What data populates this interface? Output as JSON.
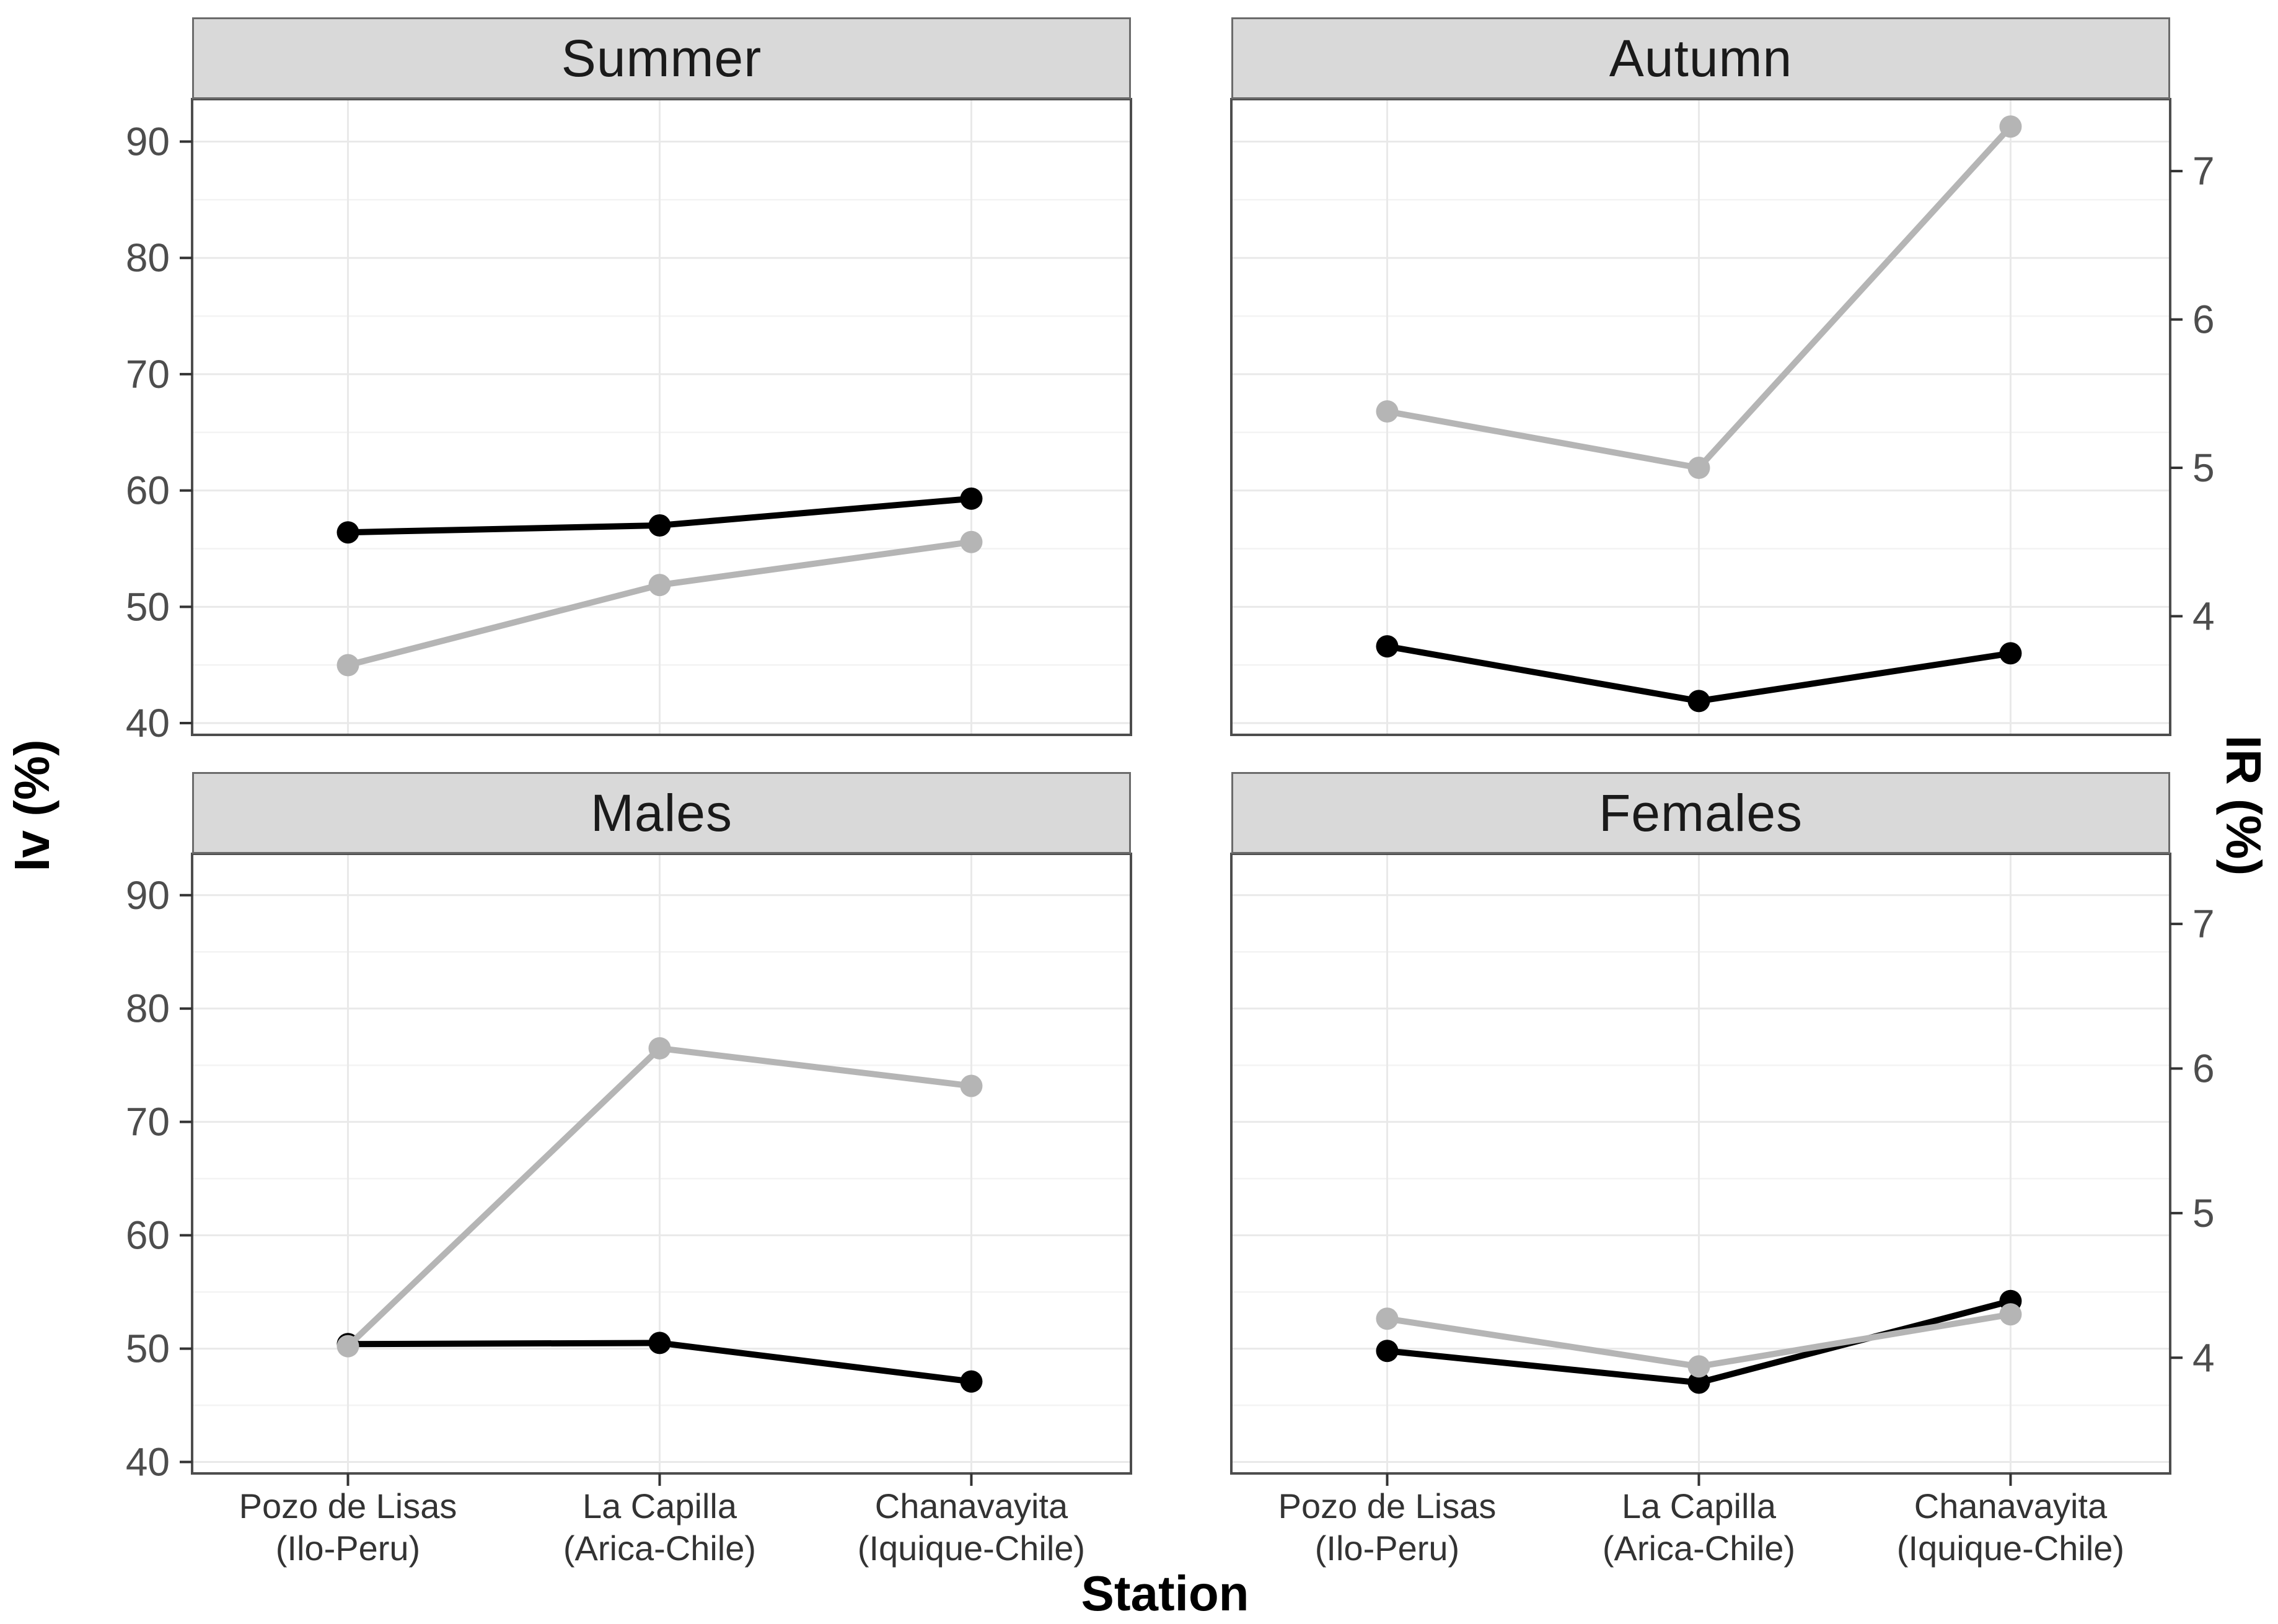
{
  "chart_data": {
    "type": "line",
    "title": "",
    "facets": [
      {
        "label": "Summer",
        "series": [
          {
            "name": "Iv",
            "axis": "left",
            "color": "#000000",
            "values": [
              56.4,
              57.0,
              59.3
            ]
          },
          {
            "name": "IR",
            "axis": "right",
            "color": "#b5b5b5",
            "values": [
              3.67,
              4.21,
              4.5
            ]
          }
        ]
      },
      {
        "label": "Autumn",
        "series": [
          {
            "name": "Iv",
            "axis": "left",
            "color": "#000000",
            "values": [
              46.6,
              41.9,
              46.0
            ]
          },
          {
            "name": "IR",
            "axis": "right",
            "color": "#b5b5b5",
            "values": [
              5.38,
              5.0,
              7.3
            ]
          }
        ]
      },
      {
        "label": "Males",
        "series": [
          {
            "name": "Iv",
            "axis": "left",
            "color": "#000000",
            "values": [
              50.4,
              50.5,
              47.1
            ]
          },
          {
            "name": "IR",
            "axis": "right",
            "color": "#b5b5b5",
            "values": [
              4.08,
              6.14,
              5.88
            ]
          }
        ]
      },
      {
        "label": "Females",
        "series": [
          {
            "name": "Iv",
            "axis": "left",
            "color": "#000000",
            "values": [
              49.8,
              47.0,
              54.2
            ]
          },
          {
            "name": "IR",
            "axis": "right",
            "color": "#b5b5b5",
            "values": [
              4.27,
              3.94,
              4.3
            ]
          }
        ]
      }
    ],
    "categories": [
      {
        "line1": "Pozo de Lisas",
        "line2": "(Ilo-Peru)"
      },
      {
        "line1": "La Capilla",
        "line2": "(Arica-Chile)"
      },
      {
        "line1": "Chanavayita",
        "line2": "(Iquique-Chile)"
      }
    ],
    "left_axis": {
      "label": "Iv (%)",
      "ticks": [
        90,
        80,
        70,
        60,
        50,
        40
      ],
      "minor_ticks": [
        85,
        75,
        65,
        55,
        45
      ],
      "range": [
        38.99,
        93.65
      ]
    },
    "right_axis": {
      "label": "IR (%)",
      "ticks": [
        7,
        6,
        5,
        4
      ],
      "range": [
        3.2,
        7.485
      ]
    },
    "x_axis": {
      "label": "Station"
    },
    "grid": true,
    "legend": "none",
    "colors": {
      "iv_series": "#000000",
      "ir_series": "#b5b5b5",
      "strip_bg": "#d9d9d9",
      "panel_border": "#4d4d4d",
      "gridline_major": "#e9e9e9",
      "gridline_minor": "#f3f3f3",
      "tick_mark": "#333333",
      "tick_label": "#4d4d4d"
    }
  }
}
